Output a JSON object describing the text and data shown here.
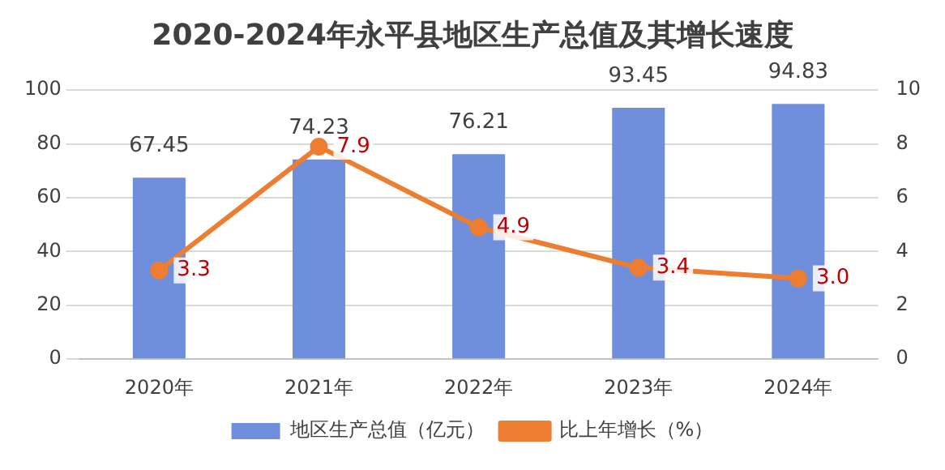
{
  "chart_data": {
    "type": "bar",
    "title": "2020-2024年永平县地区生产总值及其增长速度",
    "categories": [
      "2020年",
      "2021年",
      "2022年",
      "2023年",
      "2024年"
    ],
    "series": [
      {
        "name": "地区生产总值（亿元）",
        "color": "#6f8fdc",
        "values": [
          67.45,
          74.23,
          76.21,
          93.45,
          94.83
        ],
        "value_labels": [
          "67.45",
          "74.23",
          "76.21",
          "93.45",
          "94.83"
        ]
      },
      {
        "name": "比上年增长（%）",
        "type": "line",
        "axis": "y2",
        "color": "#ed7d31",
        "values": [
          3.3,
          7.9,
          4.9,
          3.4,
          3.0
        ],
        "value_labels": [
          "3.3",
          "7.9",
          "4.9",
          "3.4",
          "3.0"
        ]
      }
    ],
    "ylim": [
      0,
      100
    ],
    "yticks": [
      0,
      20,
      40,
      60,
      80,
      100
    ],
    "y2lim": [
      0,
      10
    ],
    "y2ticks": [
      0,
      2,
      4,
      6,
      8,
      10
    ],
    "grid": "y",
    "legend": "bottom",
    "marker": "circle",
    "line_style": "solid"
  }
}
